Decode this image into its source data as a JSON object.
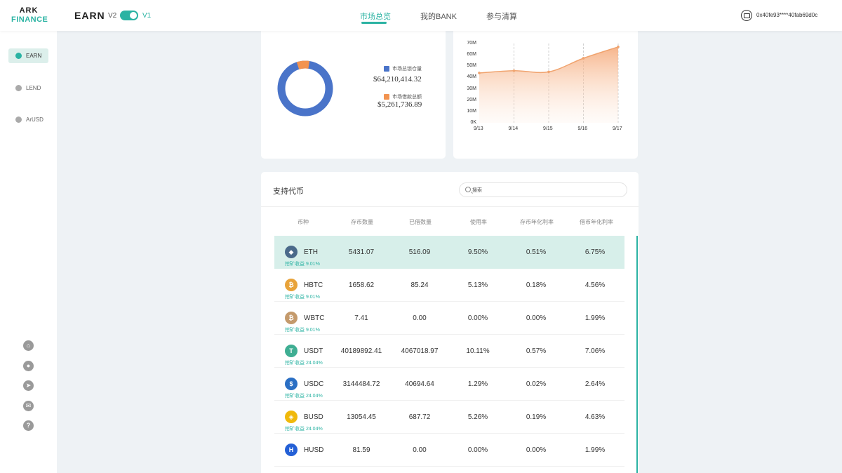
{
  "header": {
    "logo_line1": "ARK",
    "logo_line2": "FINANCE",
    "title": "EARN",
    "version_v2": "V2",
    "version_v1": "V1",
    "nav": [
      "市场总览",
      "我的BANK",
      "参与清算"
    ],
    "active_nav": "市场总览",
    "wallet_address": "0x40fe93****40fab69d0c"
  },
  "sidebar": {
    "items": [
      {
        "label": "EARN",
        "active": true
      },
      {
        "label": "LEND",
        "active": false
      },
      {
        "label": "ArUSD",
        "active": false
      }
    ],
    "social_icons": [
      "home-icon",
      "github-icon",
      "telegram-icon",
      "mail-icon",
      "help-icon"
    ]
  },
  "overview": {
    "legend": [
      {
        "label": "市场总锁仓量",
        "value": "$64,210,414.32",
        "color": "#4a74c9"
      },
      {
        "label": "市场借款总额",
        "value": "$5,261,736.89",
        "color": "#f29350"
      }
    ]
  },
  "chart_data": {
    "type": "area",
    "x": [
      "9/13",
      "9/14",
      "9/15",
      "9/16",
      "9/17"
    ],
    "y_ticks": [
      "0K",
      "10M",
      "20M",
      "30M",
      "40M",
      "50M",
      "60M",
      "70M"
    ],
    "ylim": [
      0,
      70
    ],
    "series": [
      {
        "values": [
          44,
          46,
          45,
          57,
          67
        ],
        "color": "#f0a36e"
      }
    ]
  },
  "tokens": {
    "title": "支持代币",
    "search_placeholder": "搜索",
    "columns": [
      "币种",
      "存币数量",
      "已借数量",
      "使用率",
      "存币年化利率",
      "借币年化利率"
    ],
    "rows": [
      {
        "symbol": "ETH",
        "icon": "eth-icon",
        "icon_color": "#4a6a8a",
        "glyph": "◆",
        "deposit": "5431.07",
        "borrowed": "516.09",
        "usage": "9.50%",
        "deposit_apy": "0.51%",
        "borrow_apy": "6.75%",
        "mining": "挖矿收益 9.01%"
      },
      {
        "symbol": "HBTC",
        "icon": "hbtc-icon",
        "icon_color": "#e8a33a",
        "glyph": "₿",
        "deposit": "1658.62",
        "borrowed": "85.24",
        "usage": "5.13%",
        "deposit_apy": "0.18%",
        "borrow_apy": "4.56%",
        "mining": "挖矿收益 9.01%"
      },
      {
        "symbol": "WBTC",
        "icon": "wbtc-icon",
        "icon_color": "#c49a6c",
        "glyph": "₿",
        "deposit": "7.41",
        "borrowed": "0.00",
        "usage": "0.00%",
        "deposit_apy": "0.00%",
        "borrow_apy": "1.99%",
        "mining": "挖矿收益 9.01%"
      },
      {
        "symbol": "USDT",
        "icon": "usdt-icon",
        "icon_color": "#3fae93",
        "glyph": "T",
        "deposit": "40189892.41",
        "borrowed": "4067018.97",
        "usage": "10.11%",
        "deposit_apy": "0.57%",
        "borrow_apy": "7.06%",
        "mining": "挖矿收益 24.04%"
      },
      {
        "symbol": "USDC",
        "icon": "usdc-icon",
        "icon_color": "#2a6fc4",
        "glyph": "$",
        "deposit": "3144484.72",
        "borrowed": "40694.64",
        "usage": "1.29%",
        "deposit_apy": "0.02%",
        "borrow_apy": "2.64%",
        "mining": "挖矿收益 24.04%"
      },
      {
        "symbol": "BUSD",
        "icon": "busd-icon",
        "icon_color": "#f0b90b",
        "glyph": "◈",
        "deposit": "13054.45",
        "borrowed": "687.72",
        "usage": "5.26%",
        "deposit_apy": "0.19%",
        "borrow_apy": "4.63%",
        "mining": "挖矿收益 24.04%"
      },
      {
        "symbol": "HUSD",
        "icon": "husd-icon",
        "icon_color": "#2460d6",
        "glyph": "H",
        "deposit": "81.59",
        "borrowed": "0.00",
        "usage": "0.00%",
        "deposit_apy": "0.00%",
        "borrow_apy": "1.99%",
        "mining": ""
      }
    ]
  }
}
